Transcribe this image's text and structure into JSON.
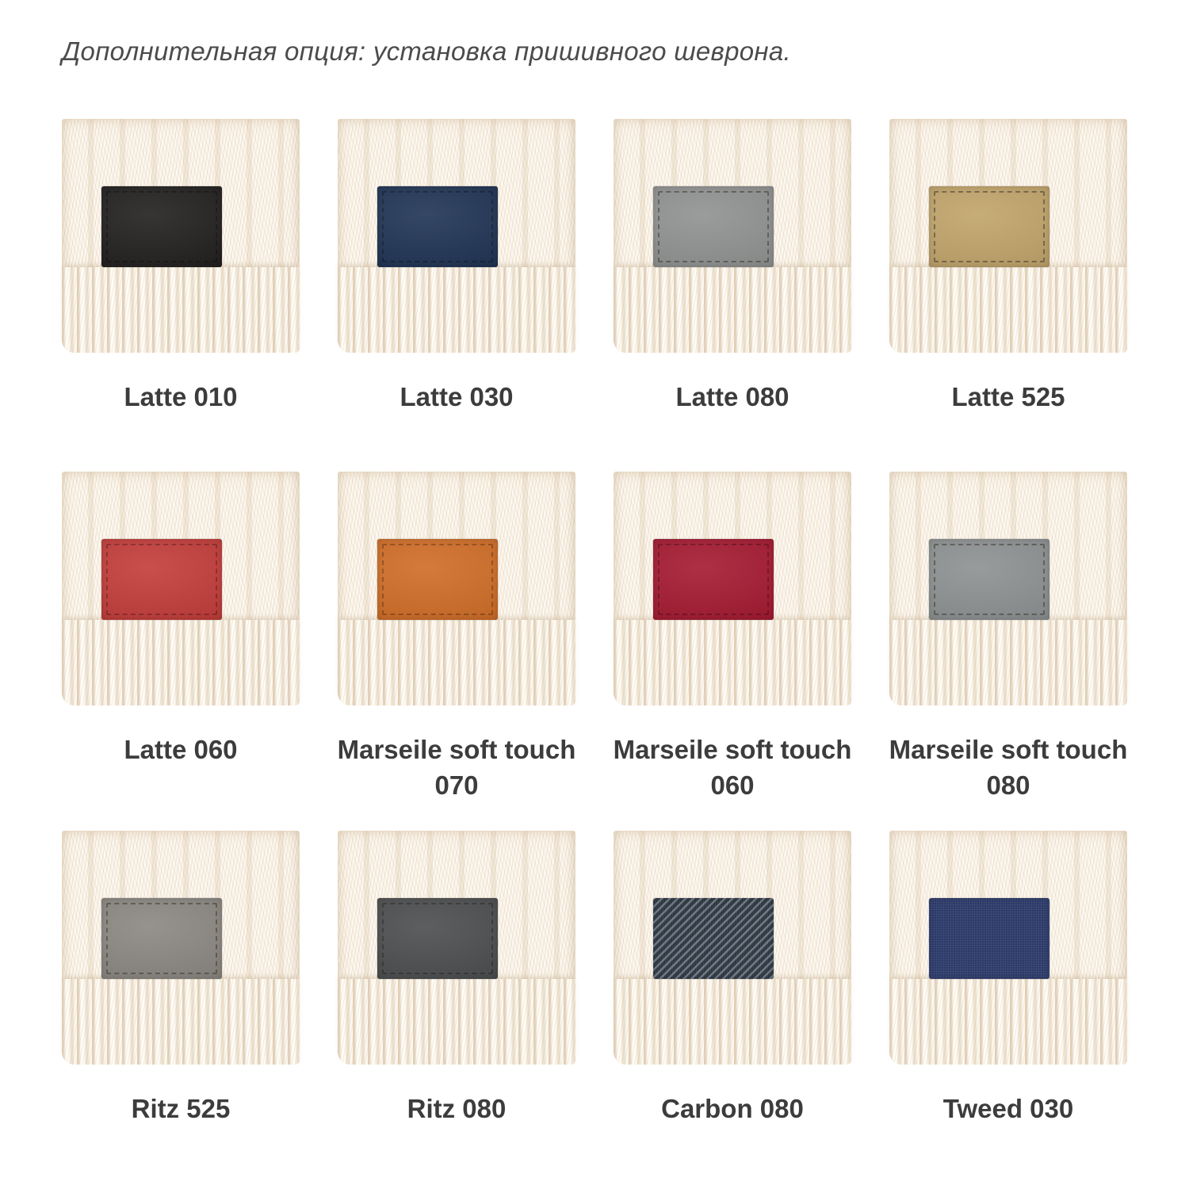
{
  "header": {
    "title": "Дополнительная опция: установка пришивного шеврона."
  },
  "colors": {
    "page_background": "#ffffff",
    "knit_fabric": "#fcf7ef",
    "header_text": "#4b4b4b",
    "label_text": "#3c3c3c"
  },
  "swatches": [
    {
      "label": "Latte 010",
      "patch_color": "#201e1d",
      "texture": "plain",
      "stitch": "subtle"
    },
    {
      "label": "Latte 030",
      "patch_color": "#1d3252",
      "texture": "plain",
      "stitch": "subtle"
    },
    {
      "label": "Latte 080",
      "patch_color": "#8f9190",
      "texture": "plain",
      "stitch": "dark"
    },
    {
      "label": "Latte 525",
      "patch_color": "#c0a369",
      "texture": "plain",
      "stitch": "dark"
    },
    {
      "label": "Latte 060",
      "patch_color": "#c23b38",
      "texture": "plain",
      "stitch": "subtle"
    },
    {
      "label": "Marseile soft touch 070",
      "patch_color": "#cf6c25",
      "texture": "plain",
      "stitch": "subtle"
    },
    {
      "label": "Marseile soft touch 060",
      "patch_color": "#a4182f",
      "texture": "plain",
      "stitch": "subtle"
    },
    {
      "label": "Marseile soft touch 080",
      "patch_color": "#8c9091",
      "texture": "plain",
      "stitch": "dark"
    },
    {
      "label": "Ritz 525",
      "patch_color": "#8a8680",
      "texture": "plain",
      "stitch": "dark"
    },
    {
      "label": "Ritz 080",
      "patch_color": "#4a4c4d",
      "texture": "plain",
      "stitch": "subtle"
    },
    {
      "label": "Carbon 080",
      "patch_color": "#424b55",
      "texture": "carbon",
      "stitch": "none"
    },
    {
      "label": "Tweed 030",
      "patch_color": "#2c3a69",
      "texture": "tweed",
      "stitch": "none"
    }
  ]
}
